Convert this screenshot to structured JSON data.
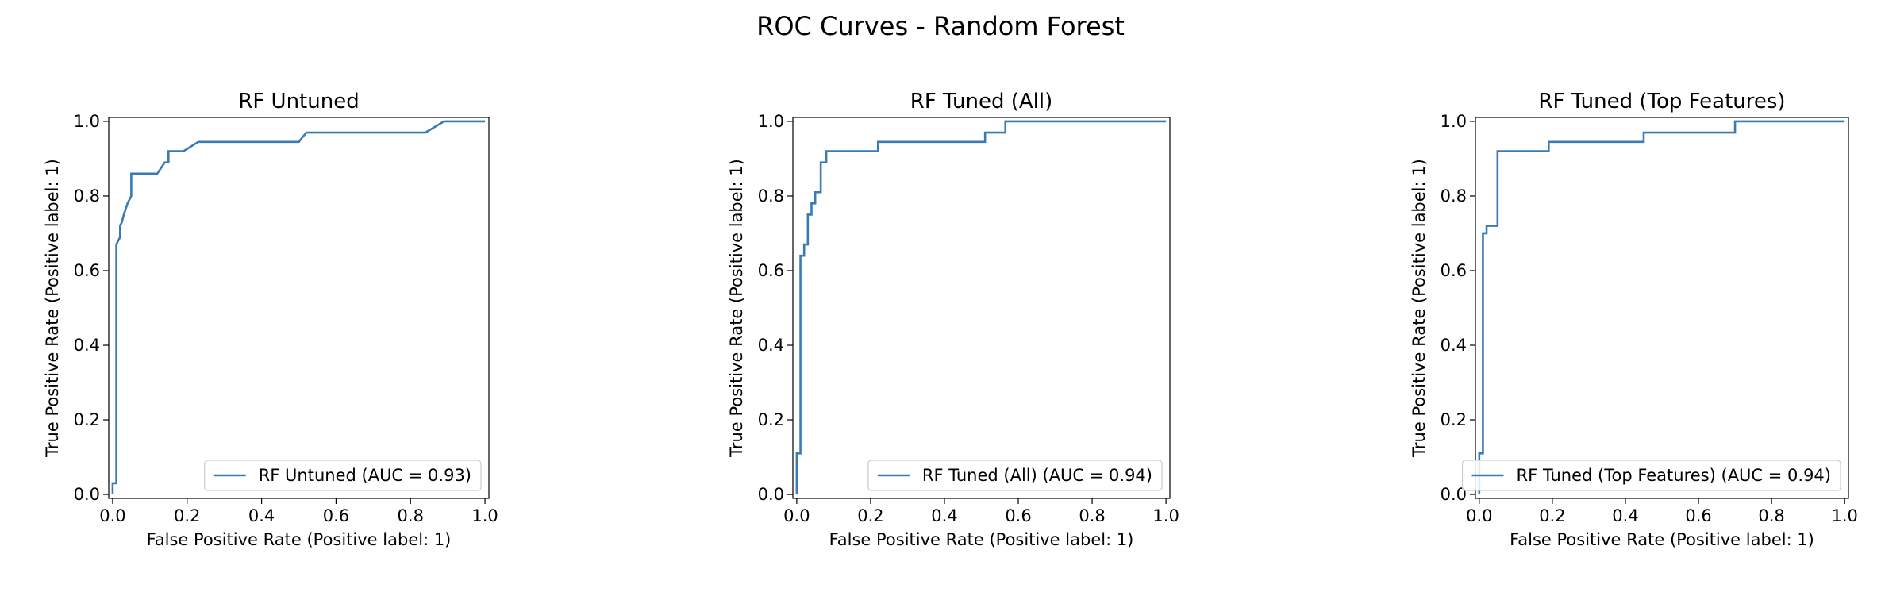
{
  "figure": {
    "suptitle": "ROC Curves - Random Forest"
  },
  "chart_data": [
    {
      "type": "line",
      "title": "RF Untuned",
      "xlabel": "False Positive Rate (Positive label: 1)",
      "ylabel": "True Positive Rate (Positive label: 1)",
      "xlim": [
        0.0,
        1.0
      ],
      "ylim": [
        0.0,
        1.0
      ],
      "xticks": [
        "0.0",
        "0.2",
        "0.4",
        "0.6",
        "0.8",
        "1.0"
      ],
      "yticks": [
        "0.0",
        "0.2",
        "0.4",
        "0.6",
        "0.8",
        "1.0"
      ],
      "grid": false,
      "legend_position": "lower-right",
      "color": "#3a7ab5",
      "series": [
        {
          "name": "RF Untuned (AUC = 0.93)",
          "x": [
            0.0,
            0.0,
            0.01,
            0.01,
            0.02,
            0.02,
            0.025,
            0.03,
            0.04,
            0.05,
            0.05,
            0.12,
            0.14,
            0.15,
            0.15,
            0.19,
            0.23,
            0.5,
            0.52,
            0.84,
            0.89,
            1.0
          ],
          "y": [
            0.0,
            0.03,
            0.03,
            0.67,
            0.69,
            0.72,
            0.73,
            0.75,
            0.78,
            0.8,
            0.86,
            0.86,
            0.89,
            0.89,
            0.92,
            0.92,
            0.945,
            0.945,
            0.97,
            0.97,
            1.0,
            1.0
          ]
        }
      ]
    },
    {
      "type": "line",
      "title": "RF Tuned (All)",
      "xlabel": "False Positive Rate (Positive label: 1)",
      "ylabel": "True Positive Rate (Positive label: 1)",
      "xlim": [
        0.0,
        1.0
      ],
      "ylim": [
        0.0,
        1.0
      ],
      "xticks": [
        "0.0",
        "0.2",
        "0.4",
        "0.6",
        "0.8",
        "1.0"
      ],
      "yticks": [
        "0.0",
        "0.2",
        "0.4",
        "0.6",
        "0.8",
        "1.0"
      ],
      "grid": false,
      "legend_position": "lower-right",
      "color": "#3a7ab5",
      "series": [
        {
          "name": "RF Tuned (All) (AUC = 0.94)",
          "x": [
            0.0,
            0.0,
            0.01,
            0.01,
            0.02,
            0.02,
            0.03,
            0.03,
            0.04,
            0.04,
            0.05,
            0.05,
            0.065,
            0.065,
            0.08,
            0.08,
            0.095,
            0.095,
            0.22,
            0.22,
            0.51,
            0.51,
            0.565,
            0.565,
            1.0
          ],
          "y": [
            0.0,
            0.11,
            0.11,
            0.64,
            0.64,
            0.67,
            0.67,
            0.75,
            0.75,
            0.78,
            0.78,
            0.81,
            0.81,
            0.89,
            0.89,
            0.92,
            0.92,
            0.92,
            0.92,
            0.945,
            0.945,
            0.97,
            0.97,
            1.0,
            1.0
          ]
        }
      ]
    },
    {
      "type": "line",
      "title": "RF Tuned (Top Features)",
      "xlabel": "False Positive Rate (Positive label: 1)",
      "ylabel": "True Positive Rate (Positive label: 1)",
      "xlim": [
        0.0,
        1.0
      ],
      "ylim": [
        0.0,
        1.0
      ],
      "xticks": [
        "0.0",
        "0.2",
        "0.4",
        "0.6",
        "0.8",
        "1.0"
      ],
      "yticks": [
        "0.0",
        "0.2",
        "0.4",
        "0.6",
        "0.8",
        "1.0"
      ],
      "grid": false,
      "legend_position": "lower-right",
      "color": "#3a7ab5",
      "series": [
        {
          "name": "RF Tuned (Top Features) (AUC = 0.94)",
          "x": [
            0.0,
            0.0,
            0.01,
            0.01,
            0.02,
            0.02,
            0.05,
            0.05,
            0.19,
            0.19,
            0.45,
            0.45,
            0.7,
            0.7,
            1.0
          ],
          "y": [
            0.0,
            0.11,
            0.11,
            0.7,
            0.7,
            0.72,
            0.72,
            0.92,
            0.92,
            0.945,
            0.945,
            0.97,
            0.97,
            1.0,
            1.0
          ]
        }
      ]
    }
  ]
}
